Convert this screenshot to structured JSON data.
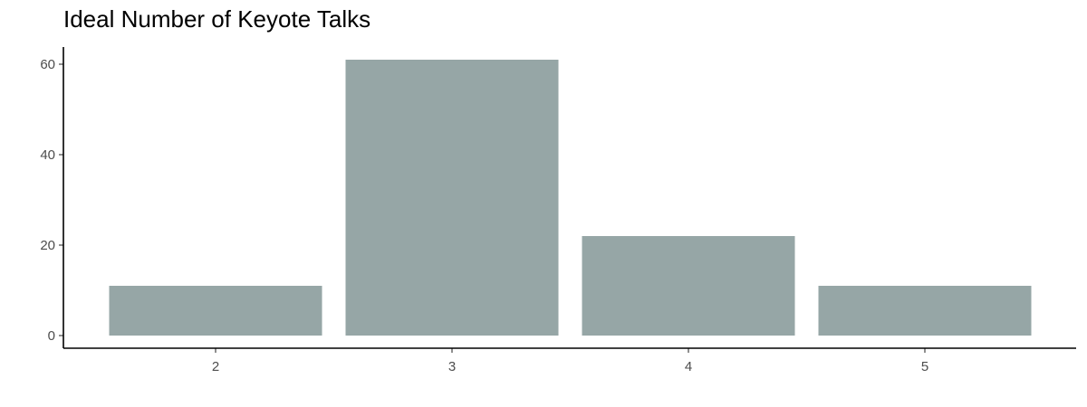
{
  "chart_data": {
    "type": "bar",
    "title": "Ideal Number of Keyote Talks",
    "xlabel": "",
    "ylabel": "",
    "categories": [
      "2",
      "3",
      "4",
      "5"
    ],
    "values": [
      11,
      61,
      22,
      11
    ],
    "ylim": [
      0,
      64
    ],
    "yticks": [
      0,
      20,
      40,
      60
    ],
    "grid": false,
    "legend": "none",
    "bar_color": "#96a6a6",
    "axis_color": "#000000"
  }
}
